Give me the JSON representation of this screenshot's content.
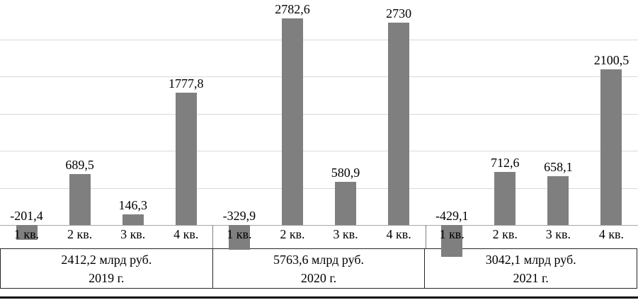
{
  "chart_data": {
    "type": "bar",
    "title": "",
    "unit": "млрд руб.",
    "bar_color": "#7f7f7f",
    "gridline_color": "#d9d9d9",
    "axis_color": "#a6a6a6",
    "axis": {
      "grid": true,
      "y_axis_labels_visible": false,
      "ylim": [
        -500,
        2800
      ],
      "gridline_values": [
        500,
        1000,
        1500,
        2000,
        2500
      ]
    },
    "groups": [
      {
        "total_label": "2412,2 млрд руб.",
        "year_label": "2019 г.",
        "categories": [
          "1 кв.",
          "2 кв.",
          "3 кв.",
          "4 кв."
        ],
        "values": [
          -201.4,
          689.5,
          146.3,
          1777.8
        ],
        "value_labels": [
          "-201,4",
          "689,5",
          "146,3",
          "1777,8"
        ]
      },
      {
        "total_label": "5763,6 млрд руб.",
        "year_label": "2020 г.",
        "categories": [
          "1 кв.",
          "2 кв.",
          "3 кв.",
          "4 кв."
        ],
        "values": [
          -329.9,
          2782.6,
          580.9,
          2730
        ],
        "value_labels": [
          "-329,9",
          "2782,6",
          "580,9",
          "2730"
        ]
      },
      {
        "total_label": "3042,1 млрд руб.",
        "year_label": "2021 г.",
        "categories": [
          "1 кв.",
          "2 кв.",
          "3 кв.",
          "4 кв."
        ],
        "values": [
          -429.1,
          712.6,
          658.1,
          2100.5
        ],
        "value_labels": [
          "-429,1",
          "712,6",
          "658,1",
          "2100,5"
        ]
      }
    ]
  }
}
